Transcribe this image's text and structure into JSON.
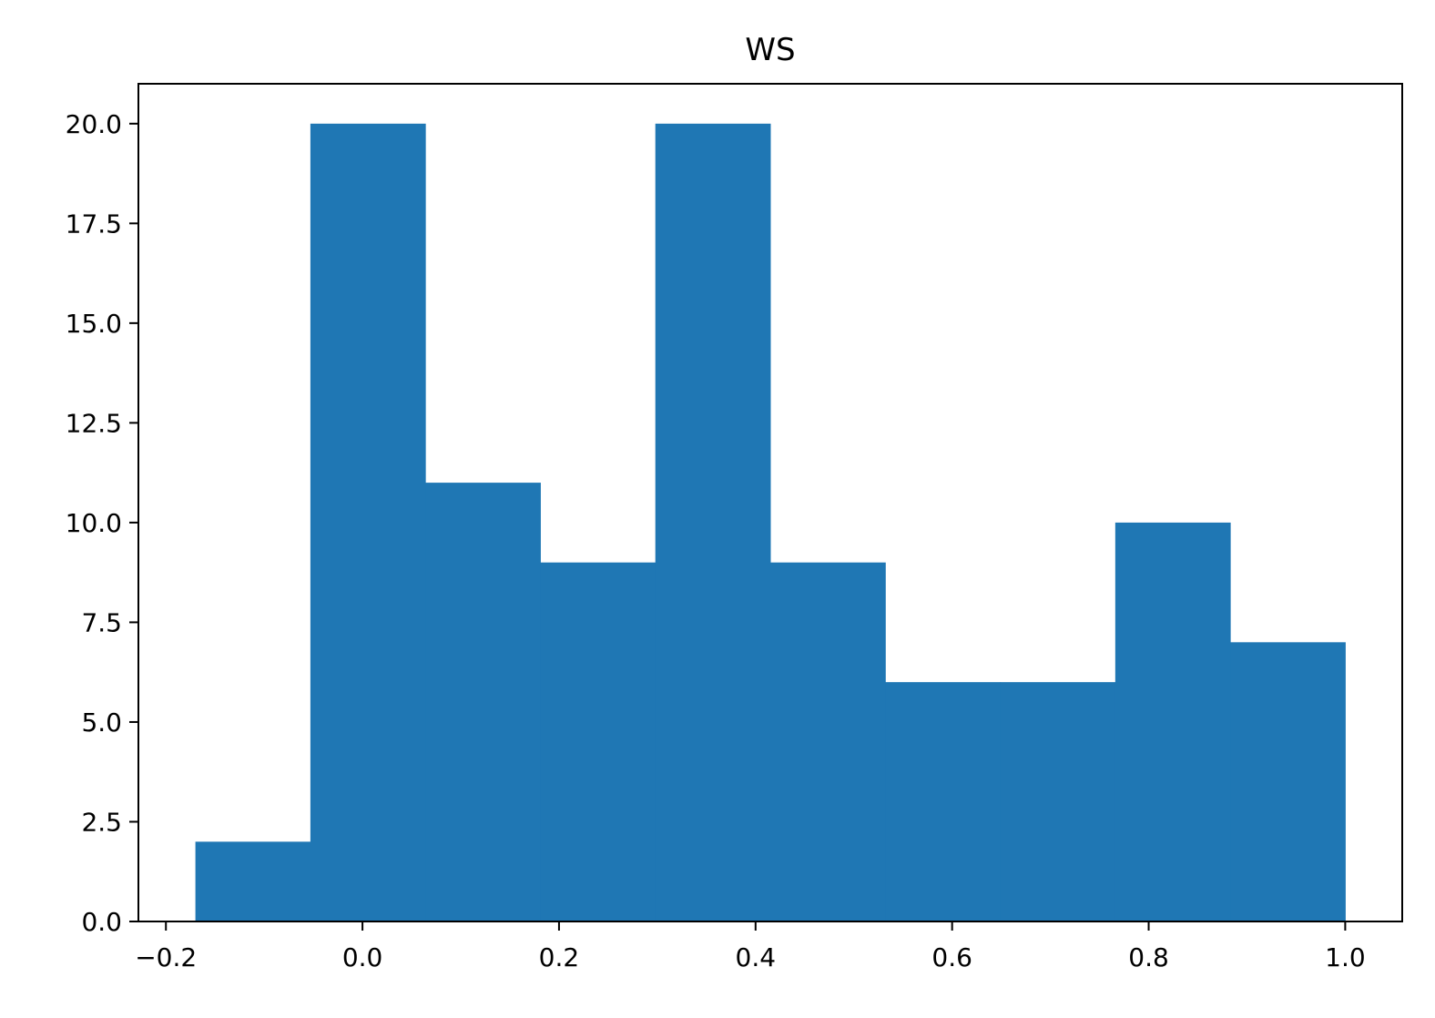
{
  "chart_data": {
    "type": "bar",
    "title": "WS",
    "xlabel": "",
    "ylabel": "",
    "bin_edges": [
      -0.17,
      -0.053,
      0.064,
      0.181,
      0.298,
      0.415,
      0.532,
      0.649,
      0.766,
      0.883,
      1.0
    ],
    "values": [
      2,
      20,
      11,
      9,
      20,
      9,
      6,
      6,
      10,
      7
    ],
    "xlim": [
      -0.228,
      1.058
    ],
    "ylim": [
      0,
      21
    ],
    "x_ticks": [
      {
        "value": -0.2,
        "label": "−0.2"
      },
      {
        "value": 0.0,
        "label": "0.0"
      },
      {
        "value": 0.2,
        "label": "0.2"
      },
      {
        "value": 0.4,
        "label": "0.4"
      },
      {
        "value": 0.6,
        "label": "0.6"
      },
      {
        "value": 0.8,
        "label": "0.8"
      },
      {
        "value": 1.0,
        "label": "1.0"
      }
    ],
    "y_ticks": [
      {
        "value": 0.0,
        "label": "0.0"
      },
      {
        "value": 2.5,
        "label": "2.5"
      },
      {
        "value": 5.0,
        "label": "5.0"
      },
      {
        "value": 7.5,
        "label": "7.5"
      },
      {
        "value": 10.0,
        "label": "10.0"
      },
      {
        "value": 12.5,
        "label": "12.5"
      },
      {
        "value": 15.0,
        "label": "15.0"
      },
      {
        "value": 17.5,
        "label": "17.5"
      },
      {
        "value": 20.0,
        "label": "20.0"
      }
    ],
    "grid": false,
    "bar_color": "#1f77b4"
  }
}
